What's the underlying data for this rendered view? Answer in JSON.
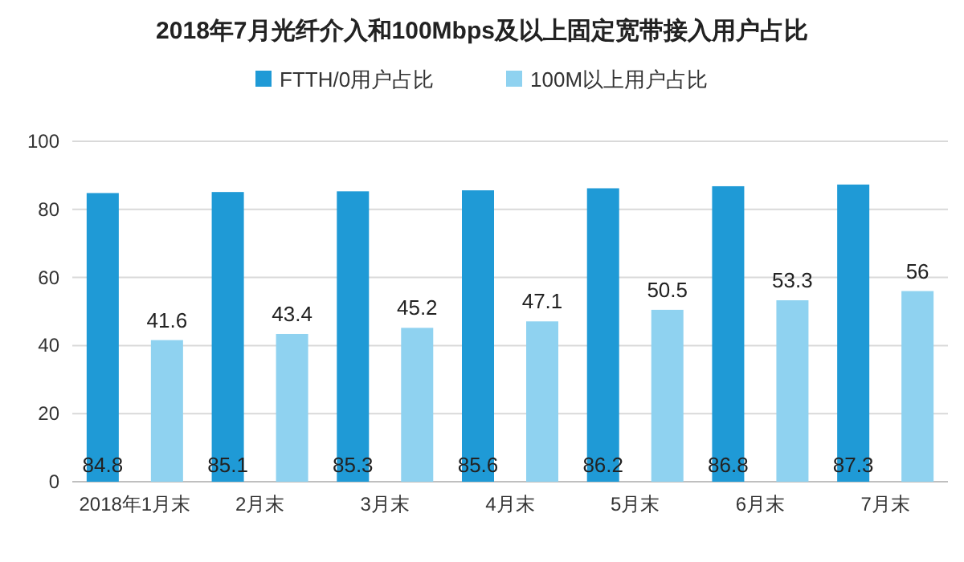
{
  "chart_data": {
    "type": "bar",
    "title": "2018年7月光纤介入和100Mbps及以上固定宽带接入用户占比",
    "categories": [
      "2018年1月末",
      "2月末",
      "3月末",
      "4月末",
      "5月末",
      "6月末",
      "7月末"
    ],
    "series": [
      {
        "name": "FTTH/0用户占比",
        "color": "#1f9ad6",
        "values": [
          84.8,
          85.1,
          85.3,
          85.6,
          86.2,
          86.8,
          87.3
        ]
      },
      {
        "name": "100M以上用户占比",
        "color": "#8fd2f0",
        "values": [
          41.6,
          43.4,
          45.2,
          47.1,
          50.5,
          53.3,
          56
        ]
      }
    ],
    "ylim": [
      0,
      100
    ],
    "yticks": [
      0,
      20,
      40,
      60,
      80,
      100
    ],
    "grid": "y",
    "legend": "top",
    "data_labels": true
  }
}
